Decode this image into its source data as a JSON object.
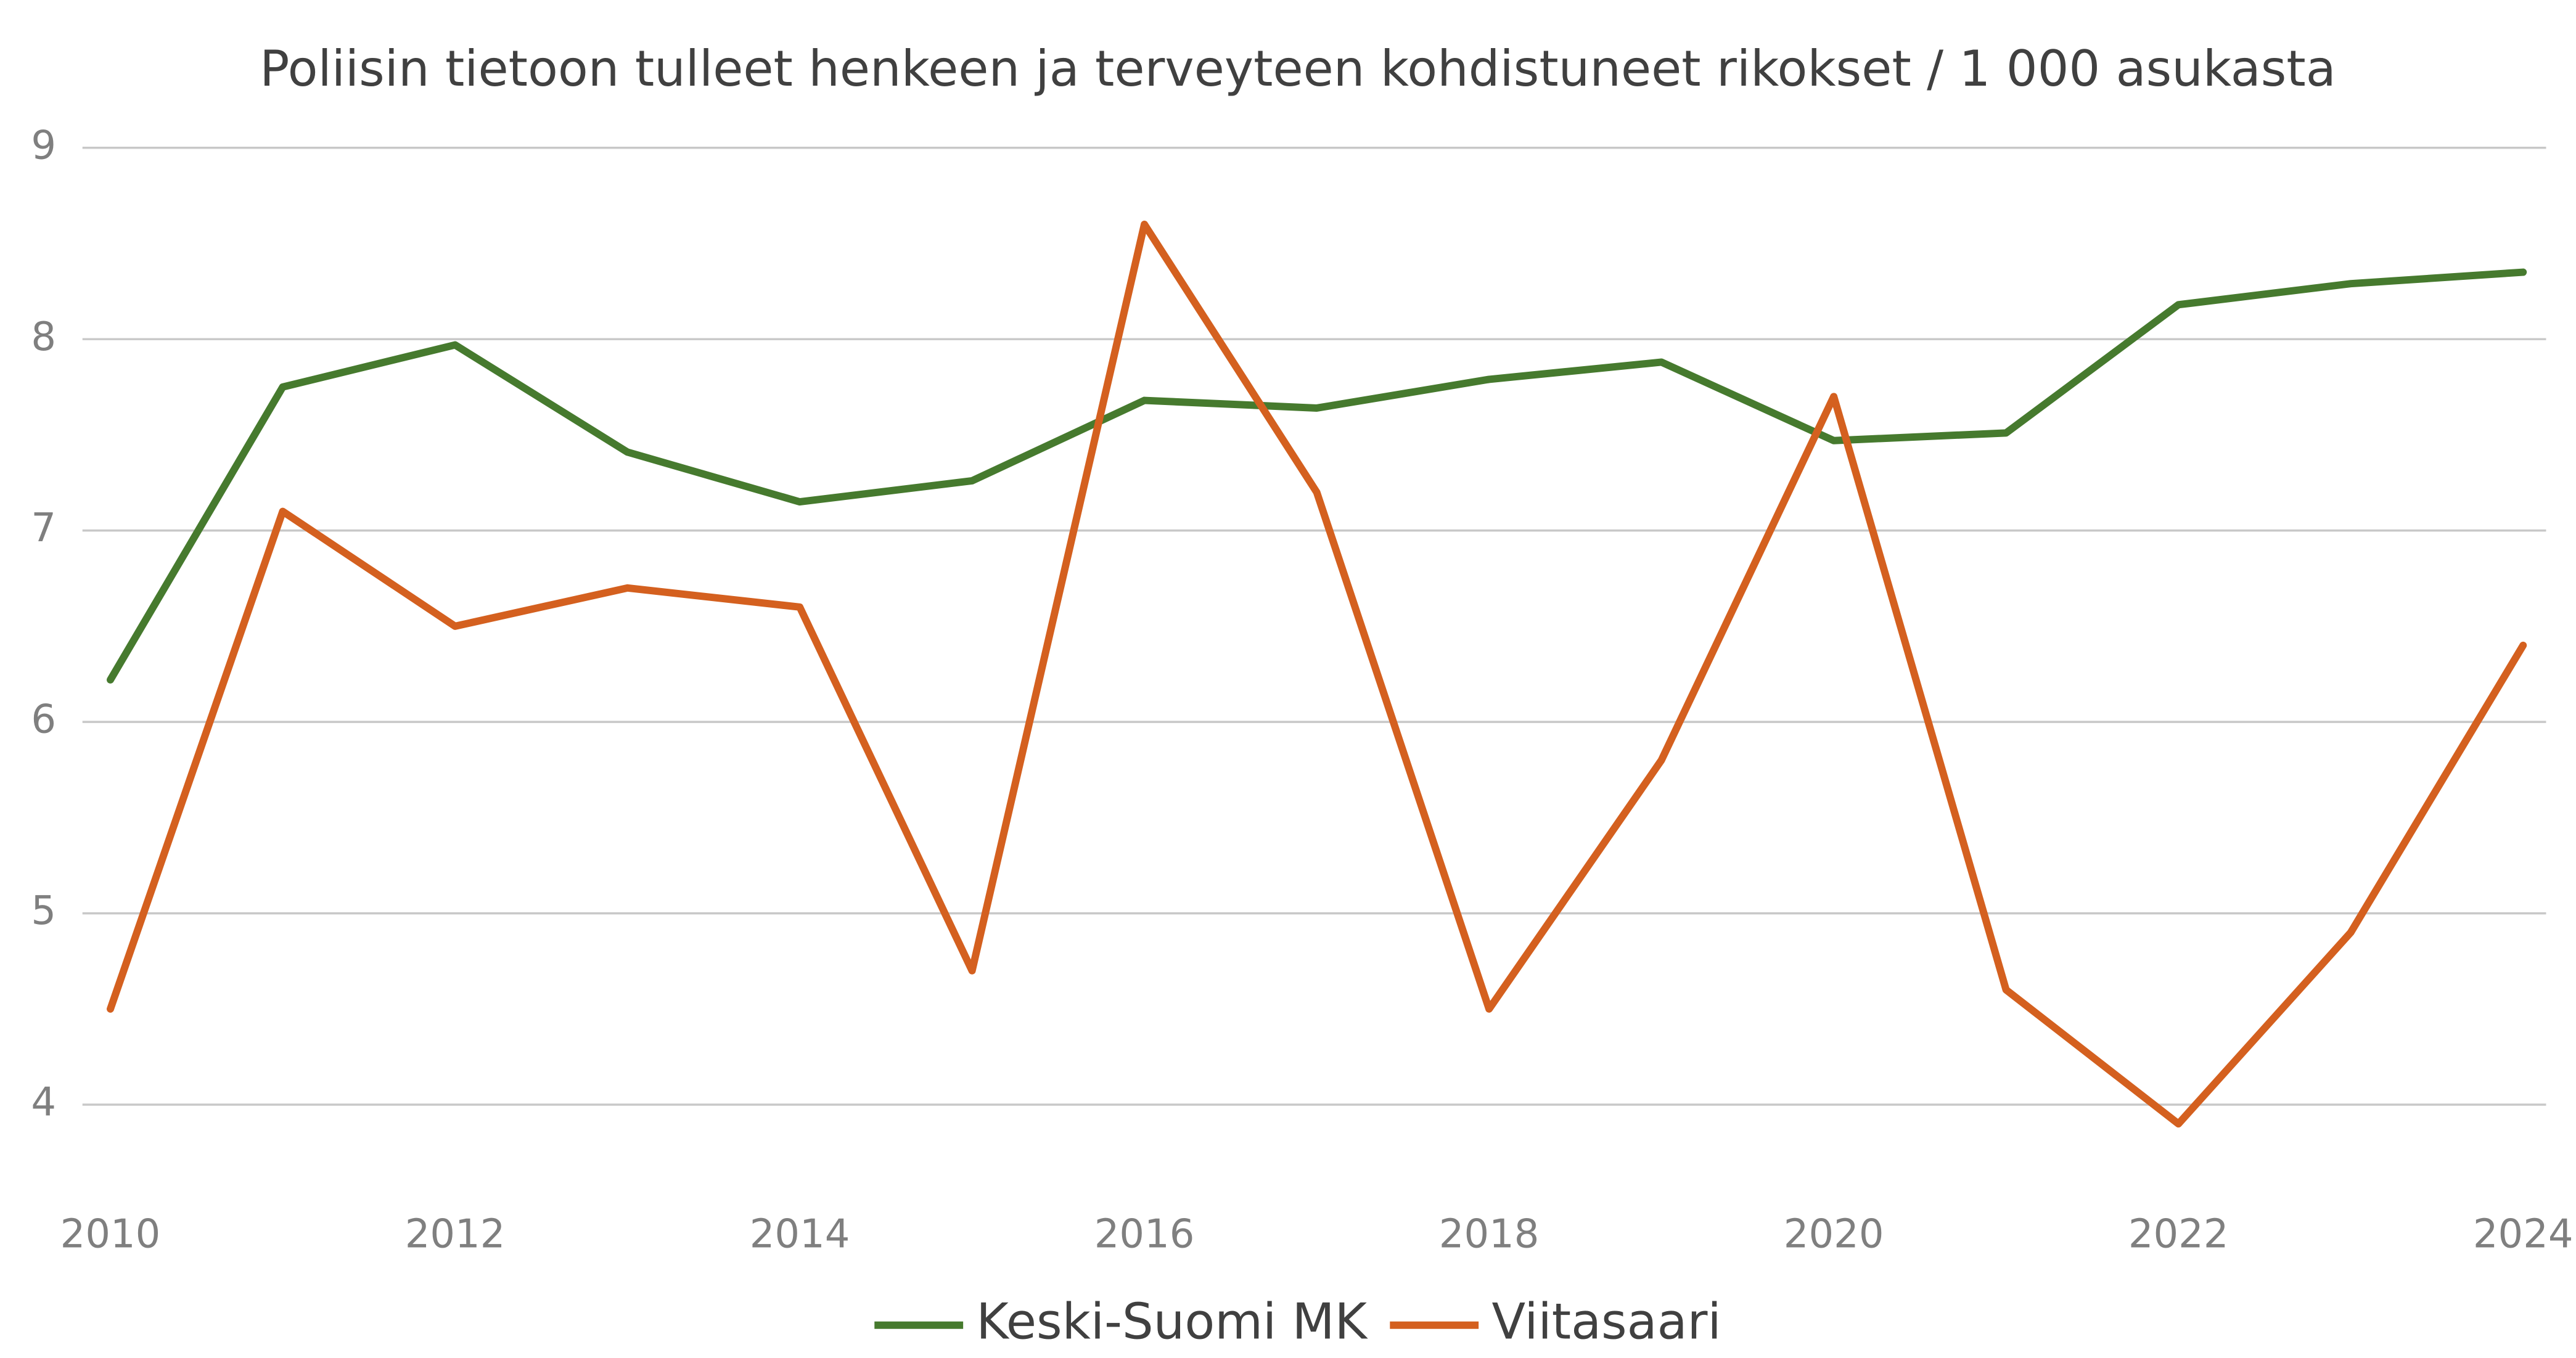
{
  "chart_data": {
    "type": "line",
    "title": "Poliisin tietoon tulleet henkeen ja terveyteen kohdistuneet rikokset / 1 000 asukasta",
    "x": [
      2010,
      2011,
      2012,
      2013,
      2014,
      2015,
      2016,
      2017,
      2018,
      2019,
      2020,
      2021,
      2022,
      2023,
      2024
    ],
    "series": [
      {
        "name": "Keski-Suomi MK",
        "color": "#467a2e",
        "values": [
          6.22,
          7.75,
          7.97,
          7.41,
          7.15,
          7.26,
          7.68,
          7.64,
          7.79,
          7.88,
          7.47,
          7.51,
          8.18,
          8.29,
          8.35
        ]
      },
      {
        "name": "Viitasaari",
        "color": "#d4601f",
        "values": [
          4.5,
          7.1,
          6.5,
          6.7,
          6.6,
          4.7,
          8.6,
          7.2,
          4.5,
          5.8,
          7.7,
          4.6,
          3.9,
          4.9,
          6.4
        ]
      }
    ],
    "xlim": [
      2010,
      2024
    ],
    "xticks": [
      2010,
      2012,
      2014,
      2016,
      2018,
      2020,
      2022,
      2024
    ],
    "ylim": [
      3.5,
      9
    ],
    "yticks": [
      4,
      5,
      6,
      7,
      8,
      9
    ],
    "grid": true,
    "legend": "bottom"
  }
}
